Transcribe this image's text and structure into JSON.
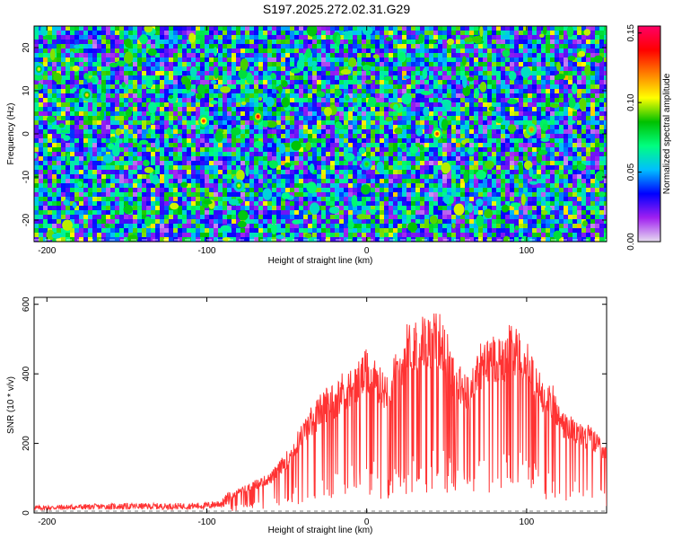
{
  "title": "S197.2025.272.02.31.G29",
  "chart_data": [
    {
      "type": "heatmap",
      "xlabel": "Height of straight line (km)",
      "ylabel": "Frequency (Hz)",
      "xlim": [
        -208,
        150
      ],
      "ylim": [
        -25,
        25
      ],
      "x_ticks": [
        -200,
        -100,
        0,
        100
      ],
      "y_ticks": [
        -20,
        -10,
        0,
        10,
        20
      ],
      "colorbar": {
        "label": "Normalized spectral amplitude",
        "range": [
          0.0,
          0.155
        ],
        "ticks": [
          "0.00",
          "0.05",
          "0.10",
          "0.15"
        ],
        "colors": [
          "#e6dcf0",
          "#a020f0",
          "#0000ff",
          "#00bfff",
          "#00ff7f",
          "#00c000",
          "#ffff00",
          "#ff8000",
          "#ff0000",
          "#ff0066"
        ]
      },
      "hot_spots": [
        {
          "x": -102,
          "y": 3,
          "v": 0.13
        },
        {
          "x": -68,
          "y": 4,
          "v": 0.14
        },
        {
          "x": 44,
          "y": 0,
          "v": 0.13
        },
        {
          "x": 103,
          "y": 1,
          "v": 0.12
        },
        {
          "x": -175,
          "y": 9,
          "v": 0.11
        },
        {
          "x": -205,
          "y": 15,
          "v": 0.1
        },
        {
          "x": -80,
          "y": -12,
          "v": 0.1
        },
        {
          "x": 0,
          "y": -7,
          "v": 0.09
        }
      ]
    },
    {
      "type": "line",
      "xlabel": "Height of straight line (km)",
      "ylabel": "SNR (10 * v/v)",
      "xlim": [
        -208,
        150
      ],
      "ylim": [
        0,
        620
      ],
      "x_ticks": [
        -200,
        -100,
        0,
        100
      ],
      "y_ticks": [
        0,
        200,
        400,
        600
      ],
      "series": [
        {
          "color": "#ff3333",
          "x": [
            -208,
            -180,
            -150,
            -120,
            -100,
            -90,
            -85,
            -80,
            -75,
            -70,
            -65,
            -60,
            -55,
            -50,
            -45,
            -40,
            -35,
            -30,
            -25,
            -20,
            -15,
            -10,
            -5,
            0,
            5,
            10,
            15,
            20,
            25,
            30,
            35,
            40,
            45,
            50,
            55,
            60,
            65,
            70,
            75,
            80,
            85,
            90,
            95,
            100,
            105,
            110,
            115,
            120,
            125,
            130,
            135,
            140,
            145,
            150
          ],
          "values": [
            15,
            18,
            20,
            20,
            22,
            30,
            50,
            70,
            80,
            90,
            100,
            110,
            140,
            170,
            210,
            250,
            290,
            320,
            350,
            360,
            390,
            400,
            420,
            450,
            420,
            390,
            410,
            460,
            520,
            540,
            545,
            540,
            560,
            500,
            430,
            390,
            380,
            460,
            480,
            500,
            490,
            540,
            500,
            480,
            410,
            380,
            370,
            300,
            270,
            260,
            250,
            240,
            210,
            180
          ]
        }
      ]
    }
  ]
}
